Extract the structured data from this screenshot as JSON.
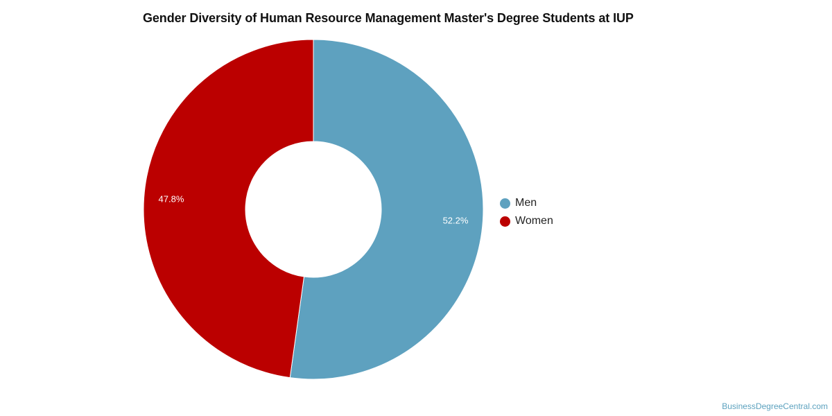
{
  "chart_data": {
    "type": "pie",
    "style": "donut",
    "title": "Gender Diversity of Human Resource Management Master's Degree Students at IUP",
    "categories": [
      "Men",
      "Women"
    ],
    "values": [
      52.2,
      47.8
    ],
    "value_labels": [
      "52.2%",
      "47.8%"
    ],
    "colors": [
      "#5ea1bf",
      "#bb0000"
    ],
    "legend": {
      "placement": "right",
      "entries": [
        "Men",
        "Women"
      ]
    }
  },
  "watermark": "BusinessDegreeCentral.com"
}
